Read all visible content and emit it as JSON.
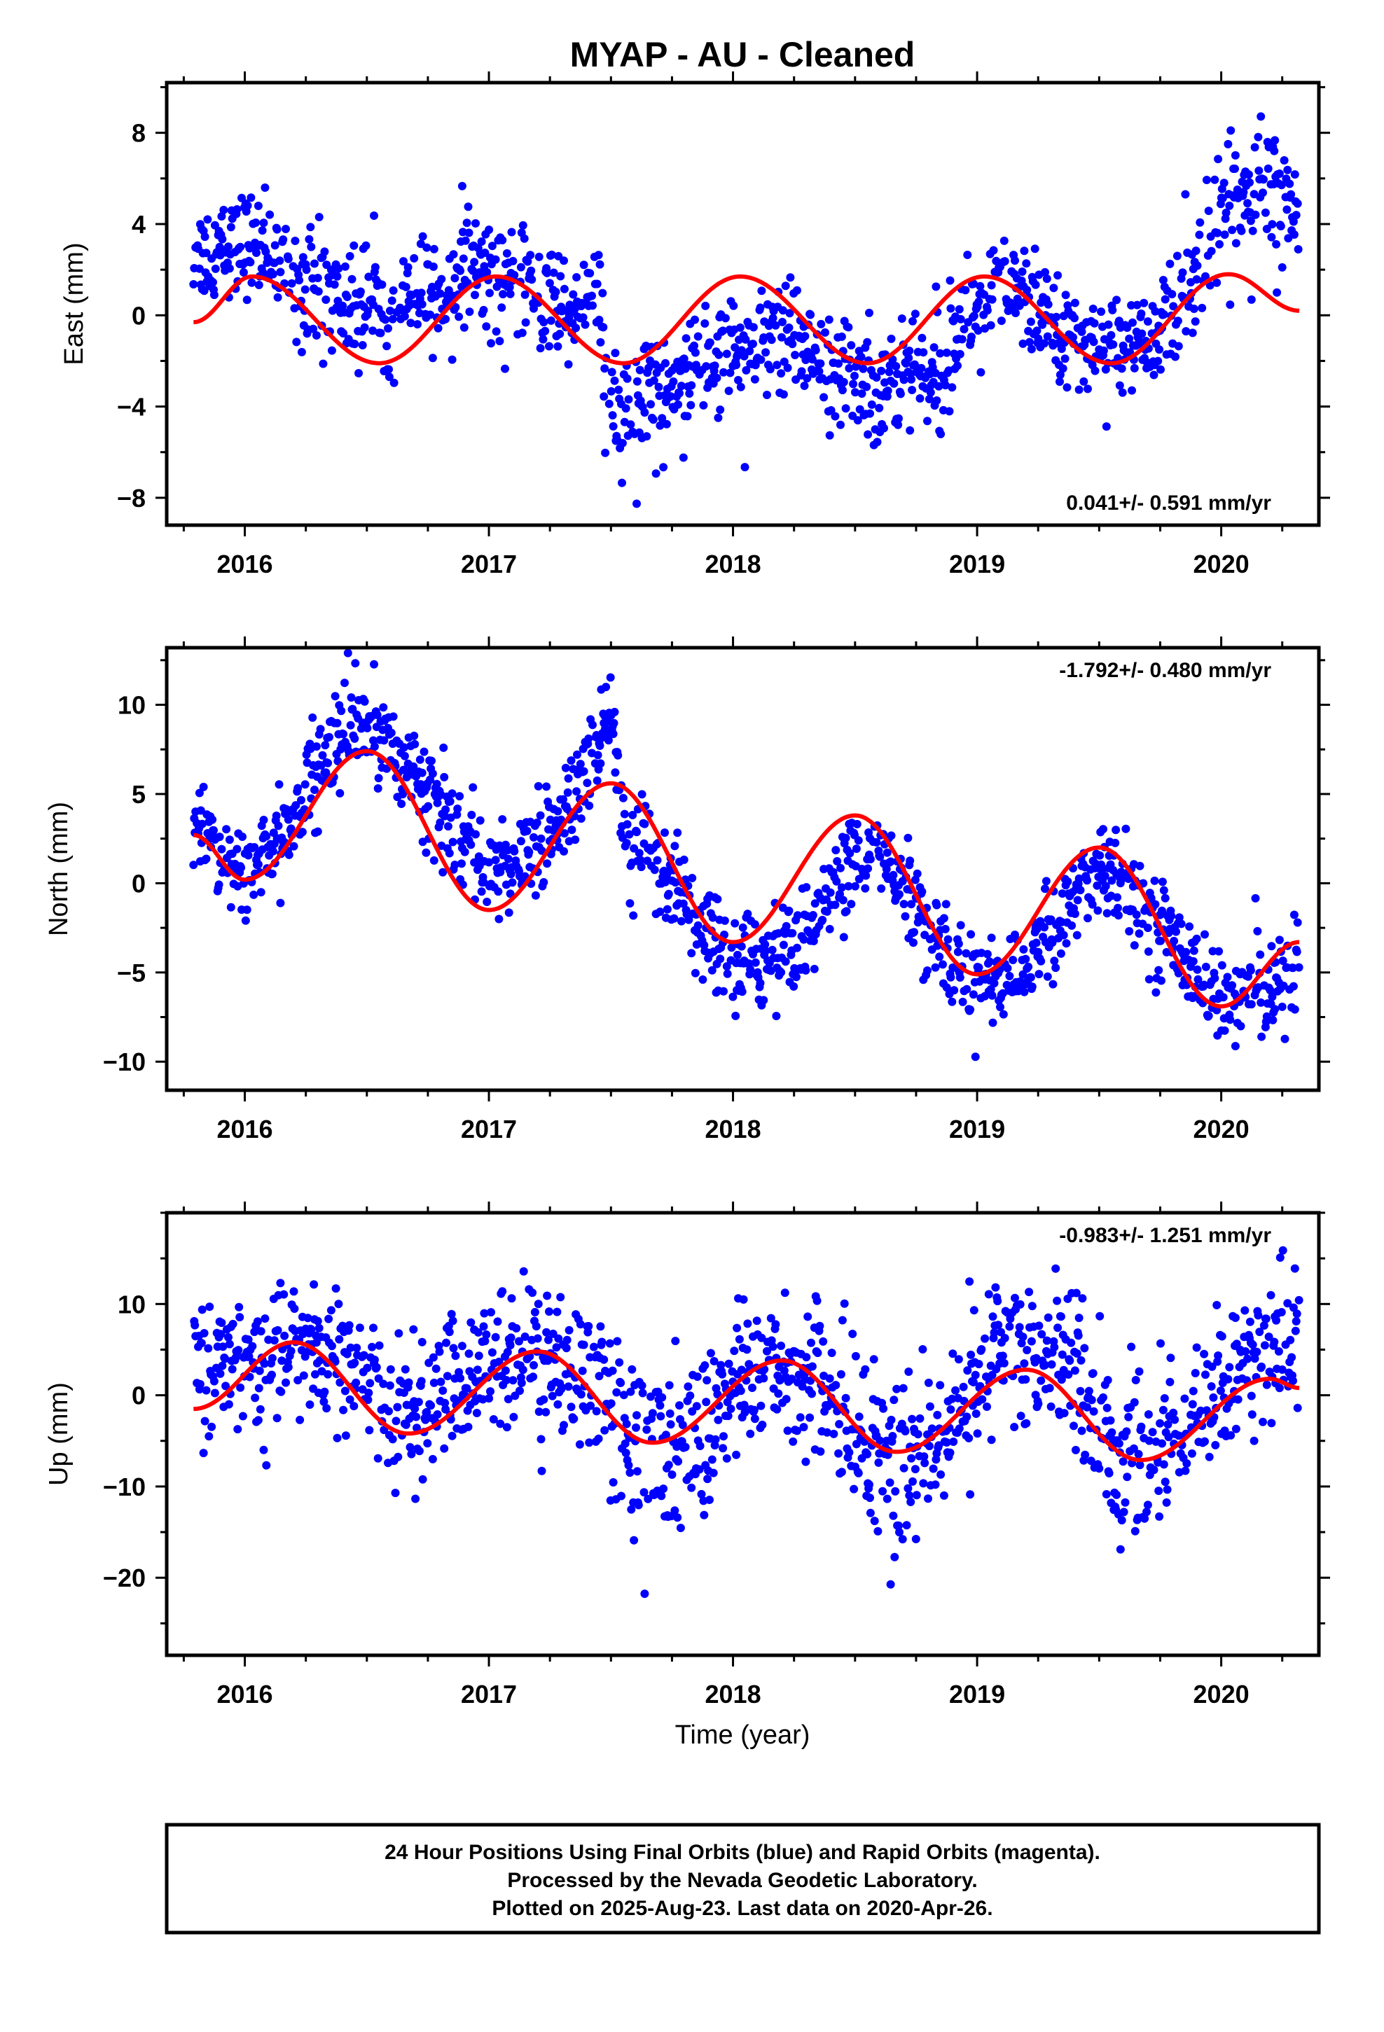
{
  "figure": {
    "title": "MYAP  - AU - Cleaned",
    "footer_lines": [
      "24 Hour Positions Using Final Orbits (blue) and Rapid Orbits (magenta).",
      "Processed by the Nevada Geodetic Laboratory.",
      "Plotted on 2025-Aug-23. Last data on 2020-Apr-26."
    ],
    "colors": {
      "points": "#0000ff",
      "model": "#ff0000",
      "frame": "#000000"
    }
  },
  "chart_data": [
    {
      "type": "scatter",
      "component": "East",
      "ylabel": "East (mm)",
      "xlabel": "",
      "rate_label": "0.041+/- 0.591 mm/yr",
      "rate_position": "bottom-right",
      "xlim": [
        2015.68,
        2020.4
      ],
      "ylim": [
        -9.2,
        10.2
      ],
      "x_ticks": [
        2016,
        2017,
        2018,
        2019,
        2020
      ],
      "x_tick_labels": [
        "2016",
        "2017",
        "2018",
        "2019",
        "2020"
      ],
      "y_ticks": [
        -8,
        -4,
        0,
        4,
        8
      ],
      "y_tick_labels": [
        "−8",
        "−4",
        "0",
        "4",
        "8"
      ],
      "grid": false,
      "data_range": [
        2015.79,
        2020.32
      ],
      "series": [
        {
          "role": "observations",
          "segments": [
            {
              "x": [
                2015.79,
                2015.85,
                2015.95,
                2016.0,
                2016.05,
                2016.2,
                2016.4,
                2016.6,
                2016.8,
                2016.95,
                2017.1,
                2017.3,
                2017.45,
                2017.5,
                2017.55,
                2017.65,
                2017.8,
                2018.0,
                2018.2,
                2018.4,
                2018.6,
                2018.8,
                2019.0,
                2019.2,
                2019.4,
                2019.6,
                2019.75,
                2019.85,
                2019.95,
                2020.05,
                2020.15,
                2020.25,
                2020.32
              ],
              "y": [
                2.5,
                2.8,
                3.0,
                3.2,
                3.0,
                1.8,
                0.5,
                0.3,
                1.2,
                2.2,
                1.5,
                0.2,
                0.8,
                -4.5,
                -5.0,
                -3.5,
                -2.5,
                -1.5,
                -1.2,
                -2.5,
                -3.2,
                -2.2,
                0.5,
                0.8,
                -1.0,
                -1.5,
                -1.0,
                1.0,
                3.5,
                4.8,
                5.5,
                4.5,
                4.2
              ],
              "spread": [
                1.1,
                1.1,
                1.1,
                1.1,
                1.1,
                1.3,
                1.4,
                1.3,
                1.2,
                1.2,
                1.2,
                1.2,
                1.2,
                1.6,
                1.6,
                1.5,
                1.3,
                1.3,
                1.3,
                1.4,
                1.5,
                1.3,
                1.1,
                1.1,
                1.1,
                1.1,
                1.1,
                1.2,
                1.3,
                1.4,
                1.5,
                1.4,
                1.1
              ]
            }
          ]
        },
        {
          "role": "model",
          "mean_slope": 0.041,
          "annual_amp": 1.9,
          "annual_phase_peak": 2016.03,
          "model_points": {
            "x": [
              2015.79,
              2016.03,
              2016.55,
              2017.03,
              2017.55,
              2018.03,
              2018.55,
              2019.03,
              2019.55,
              2020.03,
              2020.32
            ],
            "y": [
              -0.3,
              1.7,
              -2.1,
              1.7,
              -2.1,
              1.7,
              -2.1,
              1.7,
              -2.1,
              1.8,
              0.2
            ]
          }
        }
      ]
    },
    {
      "type": "scatter",
      "component": "North",
      "ylabel": "North (mm)",
      "xlabel": "",
      "rate_label": "-1.792+/- 0.480 mm/yr",
      "rate_position": "top-right",
      "xlim": [
        2015.68,
        2020.4
      ],
      "ylim": [
        -11.6,
        13.2
      ],
      "x_ticks": [
        2016,
        2017,
        2018,
        2019,
        2020
      ],
      "x_tick_labels": [
        "2016",
        "2017",
        "2018",
        "2019",
        "2020"
      ],
      "y_ticks": [
        -10,
        -5,
        0,
        5,
        10
      ],
      "y_tick_labels": [
        "−10",
        "−5",
        "0",
        "5",
        "10"
      ],
      "grid": false,
      "data_range": [
        2015.79,
        2020.32
      ],
      "series": [
        {
          "role": "observations",
          "segments": [
            {
              "x": [
                2015.79,
                2015.9,
                2016.0,
                2016.05,
                2016.2,
                2016.35,
                2016.5,
                2016.6,
                2016.75,
                2016.9,
                2017.0,
                2017.15,
                2017.3,
                2017.45,
                2017.5,
                2017.55,
                2017.7,
                2017.85,
                2018.0,
                2018.2,
                2018.35,
                2018.5,
                2018.6,
                2018.75,
                2018.9,
                2019.05,
                2019.2,
                2019.35,
                2019.5,
                2019.6,
                2019.75,
                2019.9,
                2020.05,
                2020.2,
                2020.32
              ],
              "y": [
                3.0,
                1.5,
                0.5,
                1.0,
                3.5,
                7.5,
                9.0,
                8.0,
                5.0,
                2.5,
                0.5,
                1.5,
                3.5,
                7.5,
                9.5,
                2.5,
                0.5,
                -2.5,
                -4.5,
                -4.0,
                -2.0,
                1.5,
                2.0,
                -1.5,
                -4.5,
                -5.5,
                -4.5,
                -2.0,
                0.8,
                0.0,
                -2.5,
                -5.0,
                -6.5,
                -6.0,
                -4.0
              ],
              "spread": [
                1.2,
                1.2,
                1.2,
                1.2,
                1.3,
                1.4,
                1.4,
                1.3,
                1.3,
                1.2,
                1.2,
                1.2,
                1.3,
                1.4,
                1.4,
                1.5,
                1.4,
                1.3,
                1.4,
                1.4,
                1.3,
                1.3,
                1.3,
                1.3,
                1.3,
                1.4,
                1.3,
                1.3,
                1.3,
                1.3,
                1.3,
                1.3,
                1.4,
                1.4,
                1.4
              ]
            }
          ]
        },
        {
          "role": "model",
          "model_points": {
            "x": [
              2015.79,
              2016.0,
              2016.5,
              2017.0,
              2017.5,
              2018.0,
              2018.5,
              2019.0,
              2019.5,
              2020.0,
              2020.32
            ],
            "y": [
              2.7,
              0.2,
              7.4,
              -1.5,
              5.6,
              -3.3,
              3.8,
              -5.1,
              2.0,
              -6.9,
              -3.3
            ]
          }
        }
      ]
    },
    {
      "type": "scatter",
      "component": "Up",
      "ylabel": "Up (mm)",
      "xlabel": "Time (year)",
      "rate_label": "-0.983+/- 1.251 mm/yr",
      "rate_position": "top-right",
      "xlim": [
        2015.68,
        2020.4
      ],
      "ylim": [
        -28.5,
        20.0
      ],
      "x_ticks": [
        2016,
        2017,
        2018,
        2019,
        2020
      ],
      "x_tick_labels": [
        "2016",
        "2017",
        "2018",
        "2019",
        "2020"
      ],
      "y_ticks": [
        -20,
        -10,
        0,
        10
      ],
      "y_tick_labels": [
        "−20",
        "−10",
        "0",
        "10"
      ],
      "grid": false,
      "data_range": [
        2015.79,
        2020.32
      ],
      "series": [
        {
          "role": "observations",
          "segments": [
            {
              "x": [
                2015.79,
                2015.95,
                2016.1,
                2016.25,
                2016.4,
                2016.55,
                2016.7,
                2016.85,
                2017.0,
                2017.15,
                2017.3,
                2017.45,
                2017.6,
                2017.75,
                2017.9,
                2018.05,
                2018.2,
                2018.35,
                2018.5,
                2018.65,
                2018.8,
                2018.95,
                2019.1,
                2019.25,
                2019.4,
                2019.55,
                2019.7,
                2019.85,
                2020.0,
                2020.15,
                2020.32
              ],
              "y": [
                2.0,
                4.0,
                3.5,
                6.0,
                4.0,
                0.5,
                -2.0,
                1.0,
                3.5,
                5.0,
                3.5,
                2.0,
                -6.0,
                -6.5,
                -3.0,
                1.5,
                3.0,
                1.0,
                -5.0,
                -8.0,
                -6.0,
                -1.0,
                5.0,
                6.0,
                3.0,
                -6.0,
                -9.0,
                -4.0,
                2.0,
                5.0,
                4.5
              ],
              "spread": [
                3.5,
                3.5,
                3.8,
                4.2,
                4.2,
                4.0,
                3.8,
                3.6,
                3.8,
                4.2,
                4.0,
                4.2,
                5.2,
                5.0,
                4.2,
                3.8,
                4.0,
                4.2,
                5.0,
                5.0,
                4.2,
                3.8,
                4.2,
                4.2,
                4.0,
                4.5,
                4.2,
                3.8,
                3.8,
                4.0,
                4.0
              ]
            }
          ]
        },
        {
          "role": "model",
          "model_points": {
            "x": [
              2015.79,
              2016.2,
              2016.67,
              2017.2,
              2017.67,
              2018.2,
              2018.67,
              2019.2,
              2019.67,
              2020.2,
              2020.32
            ],
            "y": [
              -1.5,
              5.8,
              -4.2,
              4.8,
              -5.2,
              3.8,
              -6.2,
              2.8,
              -7.1,
              1.8,
              0.8
            ]
          }
        }
      ]
    }
  ]
}
